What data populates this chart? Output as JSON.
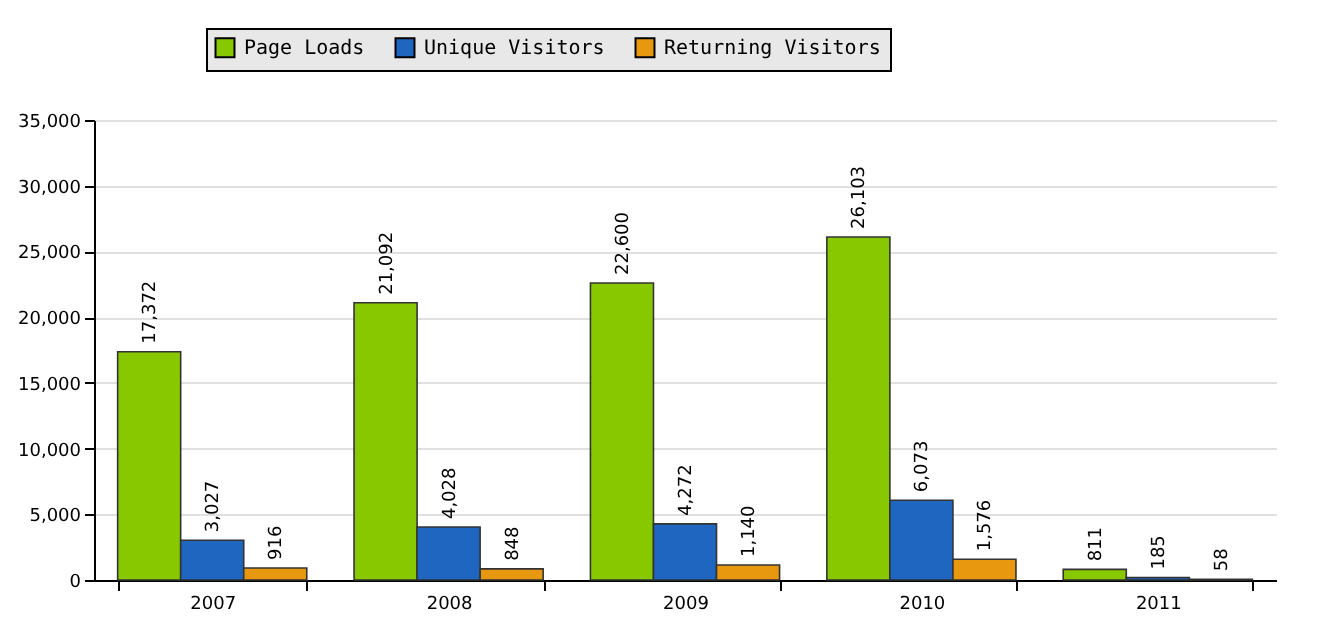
{
  "chart_data": {
    "type": "bar",
    "categories": [
      "2007",
      "2008",
      "2009",
      "2010",
      "2011"
    ],
    "series": [
      {
        "name": "Page Loads",
        "color": "#88c800",
        "values": [
          17372,
          21092,
          22600,
          26103,
          811
        ],
        "value_labels": [
          "17,372",
          "21,092",
          "22,600",
          "26,103",
          "811"
        ]
      },
      {
        "name": "Unique Visitors",
        "color": "#1f66c0",
        "values": [
          3027,
          4028,
          4272,
          6073,
          185
        ],
        "value_labels": [
          "3,027",
          "4,028",
          "4,272",
          "6,073",
          "185"
        ]
      },
      {
        "name": "Returning Visitors",
        "color": "#e8980f",
        "values": [
          916,
          848,
          1140,
          1576,
          58
        ],
        "value_labels": [
          "916",
          "848",
          "1,140",
          "1,576",
          "58"
        ]
      }
    ],
    "ylim": [
      0,
      35000
    ],
    "yticks": [
      {
        "value": 0,
        "label": "0"
      },
      {
        "value": 5000,
        "label": "5,000"
      },
      {
        "value": 10000,
        "label": "10,000"
      },
      {
        "value": 15000,
        "label": "15,000"
      },
      {
        "value": 20000,
        "label": "20,000"
      },
      {
        "value": 25000,
        "label": "25,000"
      },
      {
        "value": 30000,
        "label": "30,000"
      },
      {
        "value": 35000,
        "label": "35,000"
      }
    ],
    "grid": "y",
    "legend": "top"
  }
}
